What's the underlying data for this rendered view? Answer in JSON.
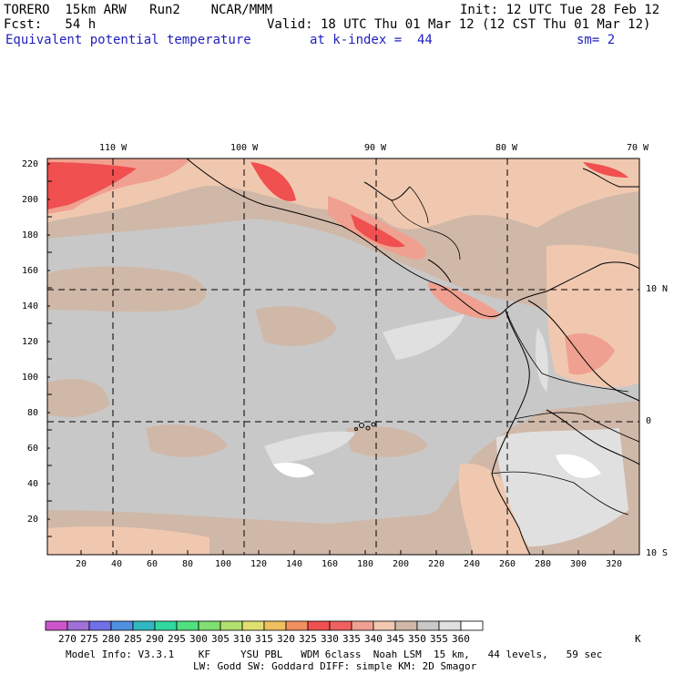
{
  "header": {
    "model": "TORERO  15km ARW   Run2    NCAR/MMM",
    "init": "Init: 12 UTC Tue 28 Feb 12",
    "fcst": "Fcst:   54 h",
    "valid": "Valid: 18 UTC Thu 01 Mar 12 (12 CST Thu 01 Mar 12)",
    "field": "Equivalent potential temperature",
    "kindex": "at k-index =  44",
    "sm": "sm= 2"
  },
  "axes": {
    "top_labels": [
      "110 W",
      "100 W",
      "90 W",
      "80 W",
      "70 W"
    ],
    "right_labels": [
      "10 N",
      "0",
      "10 S"
    ],
    "left_values": [
      20,
      40,
      60,
      80,
      100,
      120,
      140,
      160,
      180,
      200,
      220
    ],
    "bottom_values": [
      20,
      40,
      60,
      80,
      100,
      120,
      140,
      160,
      180,
      200,
      220,
      240,
      260,
      280,
      300,
      320
    ]
  },
  "colorbar": {
    "labels": [
      "270",
      "275",
      "280",
      "285",
      "290",
      "295",
      "300",
      "305",
      "310",
      "315",
      "320",
      "325",
      "330",
      "335",
      "340",
      "345",
      "350",
      "355",
      "360"
    ],
    "unit": "K",
    "colors": [
      "#cc55cc",
      "#a070d8",
      "#7070e8",
      "#5090e0",
      "#30b8c0",
      "#30d8a0",
      "#50e080",
      "#80e070",
      "#b0e070",
      "#e0e070",
      "#f0c060",
      "#f09060",
      "#f05050",
      "#f06060",
      "#f0a090",
      "#f0c8b0",
      "#d0b8a8",
      "#c8c8c8",
      "#e0e0e0",
      "#ffffff"
    ]
  },
  "footer": {
    "line1": "Model Info: V3.3.1    KF     YSU PBL   WDM 6class  Noah LSM  15 km,   44 levels,   59 sec",
    "line2": "LW: Godd SW: Goddard DIFF: simple KM: 2D Smagor"
  }
}
